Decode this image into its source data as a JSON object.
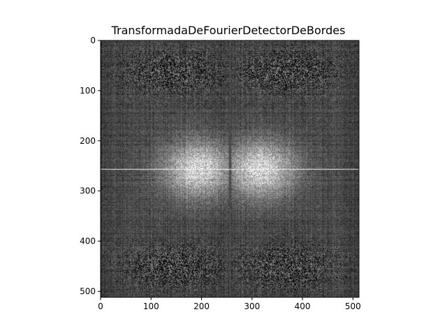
{
  "chart_data": {
    "type": "heatmap",
    "title": "TransformadaDeFourierDetectorDeBordes",
    "xlabel": "",
    "ylabel": "",
    "colormap": "gray",
    "image_size": [
      512,
      512
    ],
    "xlim": [
      0,
      512
    ],
    "ylim": [
      512,
      0
    ],
    "x_ticks": [
      0,
      100,
      200,
      300,
      400,
      500
    ],
    "y_ticks": [
      0,
      100,
      200,
      300,
      400,
      500
    ],
    "x_tick_labels": [
      "0",
      "100",
      "200",
      "300",
      "400",
      "500"
    ],
    "y_tick_labels": [
      "0",
      "100",
      "200",
      "300",
      "400",
      "500"
    ],
    "grid": false,
    "description_values": {
      "center": [
        256,
        256
      ],
      "background_level": 0.28,
      "center_level": 0.95
    }
  }
}
